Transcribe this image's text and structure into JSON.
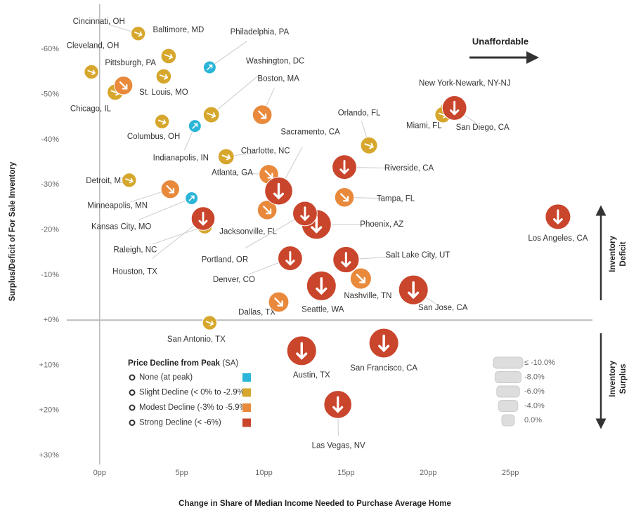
{
  "chart_data": {
    "type": "bubble",
    "xlabel": "Change in Share of Median Income Needed to Purchase Average Home",
    "ylabel": "Surplus/Deficit of For Sale Inventory",
    "xlim": [
      -2,
      30
    ],
    "ylim": [
      32,
      -70
    ],
    "xticks": [
      {
        "value": 0,
        "label": "0pp"
      },
      {
        "value": 5,
        "label": "5pp"
      },
      {
        "value": 10,
        "label": "10pp"
      },
      {
        "value": 15,
        "label": "15pp"
      },
      {
        "value": 20,
        "label": "20pp"
      },
      {
        "value": 25,
        "label": "25pp"
      }
    ],
    "yticks": [
      {
        "value": -60,
        "label": "-60%"
      },
      {
        "value": -50,
        "label": "-50%"
      },
      {
        "value": -40,
        "label": "-40%"
      },
      {
        "value": -30,
        "label": "-30%"
      },
      {
        "value": -20,
        "label": "-20%"
      },
      {
        "value": -10,
        "label": "-10%"
      },
      {
        "value": 0,
        "label": "+0%"
      },
      {
        "value": 10,
        "label": "+10%"
      },
      {
        "value": 20,
        "label": "+20%"
      },
      {
        "value": 30,
        "label": "+30%"
      }
    ],
    "annotations": {
      "unaffordable": "Unaffordable",
      "deficit": [
        "Inventory",
        "Deficit"
      ],
      "surplus": [
        "Inventory",
        "Surplus"
      ]
    },
    "legend_title": "Price Decline from Peak",
    "legend_subtitle": "(SA)",
    "size_legend": [
      {
        "value": -10,
        "label": "≤ -10.0%"
      },
      {
        "value": -8,
        "label": "-8.0%"
      },
      {
        "value": -6,
        "label": "-6.0%"
      },
      {
        "value": -4,
        "label": "-4.0%"
      },
      {
        "value": 0,
        "label": "0.0%"
      }
    ],
    "series": [
      {
        "name": "None (at peak)",
        "color": "#2bb5d8",
        "labels": [
          "Philadelphia, PA",
          "Indianapolis, IN",
          "Kansas City, MO"
        ],
        "x": [
          6.7,
          5.8,
          5.6
        ],
        "values": [
          -56,
          -43,
          -27
        ],
        "sizes": [
          0,
          0,
          0
        ]
      },
      {
        "name": "Slight Decline (< 0% to -2.9%)",
        "color": "#d6a72c",
        "labels": [
          "Cincinnati, OH",
          "Baltimore, MD",
          "Cleveland, OH",
          "St. Louis, MO",
          "Washington, DC",
          "Chicago, IL",
          "Columbus, OH",
          "New York-Newark, NY-NJ",
          "Miami, FL",
          "Orlando, FL",
          "Charlotte, NC",
          "Detroit, MI",
          "Raleigh, NC",
          "San Antonio, TX"
        ],
        "x": [
          2.35,
          4.2,
          -0.5,
          3.9,
          6.8,
          0.95,
          3.8,
          21.2,
          20.9,
          16.4,
          7.7,
          1.8,
          6.4,
          6.7
        ],
        "values": [
          -63.5,
          -58.5,
          -55,
          -54,
          -45.5,
          -50.5,
          -44,
          -46.5,
          -45.5,
          -38.7,
          -36.2,
          -31,
          -20.8,
          0.6
        ],
        "sizes": [
          -1,
          -1.5,
          -1,
          -1.5,
          -2,
          -2,
          -1,
          -2.5,
          -2,
          -2.5,
          -2,
          -1,
          -1.5,
          -1
        ]
      },
      {
        "name": "Modest Decline (-3% to -5.9%)",
        "color": "#e8893c",
        "labels": [
          "Pittsburgh, PA",
          "Boston, MA",
          "Atlanta, GA",
          "Tampa, FL",
          "Minneapolis, MN",
          "Jacksonville, FL",
          "Nashville, TN",
          "Dallas, TX"
        ],
        "x": [
          1.45,
          9.9,
          10.3,
          14.9,
          4.3,
          10.2,
          15.9,
          10.9
        ],
        "values": [
          -52,
          -45.5,
          -32.3,
          -27.2,
          -29,
          -24.4,
          -9.2,
          -4
        ],
        "sizes": [
          -3.5,
          -4,
          -4,
          -4,
          -3.5,
          -4,
          -5,
          -4.5
        ]
      },
      {
        "name": "Strong Decline (< -6%)",
        "color": "#c9452b",
        "labels": [
          "San Diego, CA",
          "Sacramento, CA",
          "Riverside, CA",
          "Phoenix, AZ",
          "Portland, OR",
          "Houston, TX",
          "Salt Lake City, UT",
          "Denver, CO",
          "Seattle, WA",
          "San Jose, CA",
          "Los Angeles, CA",
          "Austin, TX",
          "San Francisco, CA",
          "Las Vegas, NV"
        ],
        "x": [
          21.6,
          10.9,
          14.9,
          13.2,
          12.5,
          6.3,
          15,
          11.6,
          13.5,
          19.1,
          27.9,
          12.3,
          17.3,
          14.5
        ],
        "values": [
          -47,
          -28.6,
          -33.9,
          -21.2,
          -23.6,
          -22.5,
          -13.4,
          -13.7,
          -7.6,
          -6.7,
          -22.9,
          6.8,
          5.1,
          18.7
        ],
        "sizes": [
          -7,
          -9,
          -7,
          -10,
          -7,
          -6.5,
          -8,
          -7,
          -10,
          -10,
          -7.5,
          -10,
          -10,
          -9
        ]
      }
    ]
  }
}
